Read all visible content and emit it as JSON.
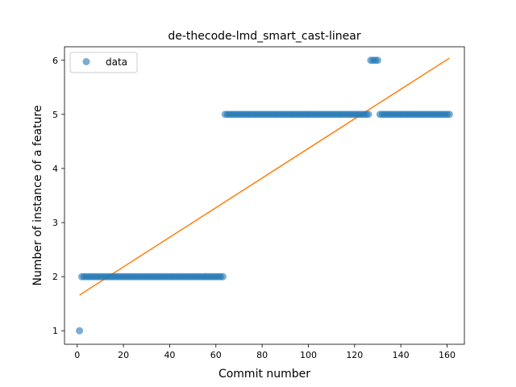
{
  "chart_data": {
    "type": "scatter",
    "title": "de-thecode-lmd_smart_cast-linear",
    "xlabel": "Commit number",
    "ylabel": "Number of instance of a feature",
    "xlim": [
      -5.5,
      167.5
    ],
    "ylim": [
      0.75,
      6.25
    ],
    "xticks": [
      0,
      20,
      40,
      60,
      80,
      100,
      120,
      140,
      160
    ],
    "yticks": [
      1,
      2,
      3,
      4,
      5,
      6
    ],
    "grid": false,
    "legend": {
      "position": "upper-left",
      "entries": [
        "data"
      ]
    },
    "series": [
      {
        "name": "data",
        "kind": "scatter",
        "color": "#1f77b4",
        "alpha": 0.6,
        "segments": [
          {
            "x_start": 1,
            "x_end": 1,
            "y": 1
          },
          {
            "x_start": 2,
            "x_end": 63,
            "y": 2
          },
          {
            "x_start": 64,
            "x_end": 126,
            "y": 5
          },
          {
            "x_start": 127,
            "x_end": 130,
            "y": 6
          },
          {
            "x_start": 131,
            "x_end": 161,
            "y": 5
          }
        ]
      },
      {
        "kind": "line",
        "color": "#ff7f0e",
        "x": [
          1,
          161
        ],
        "y": [
          1.66,
          6.04
        ]
      }
    ]
  }
}
